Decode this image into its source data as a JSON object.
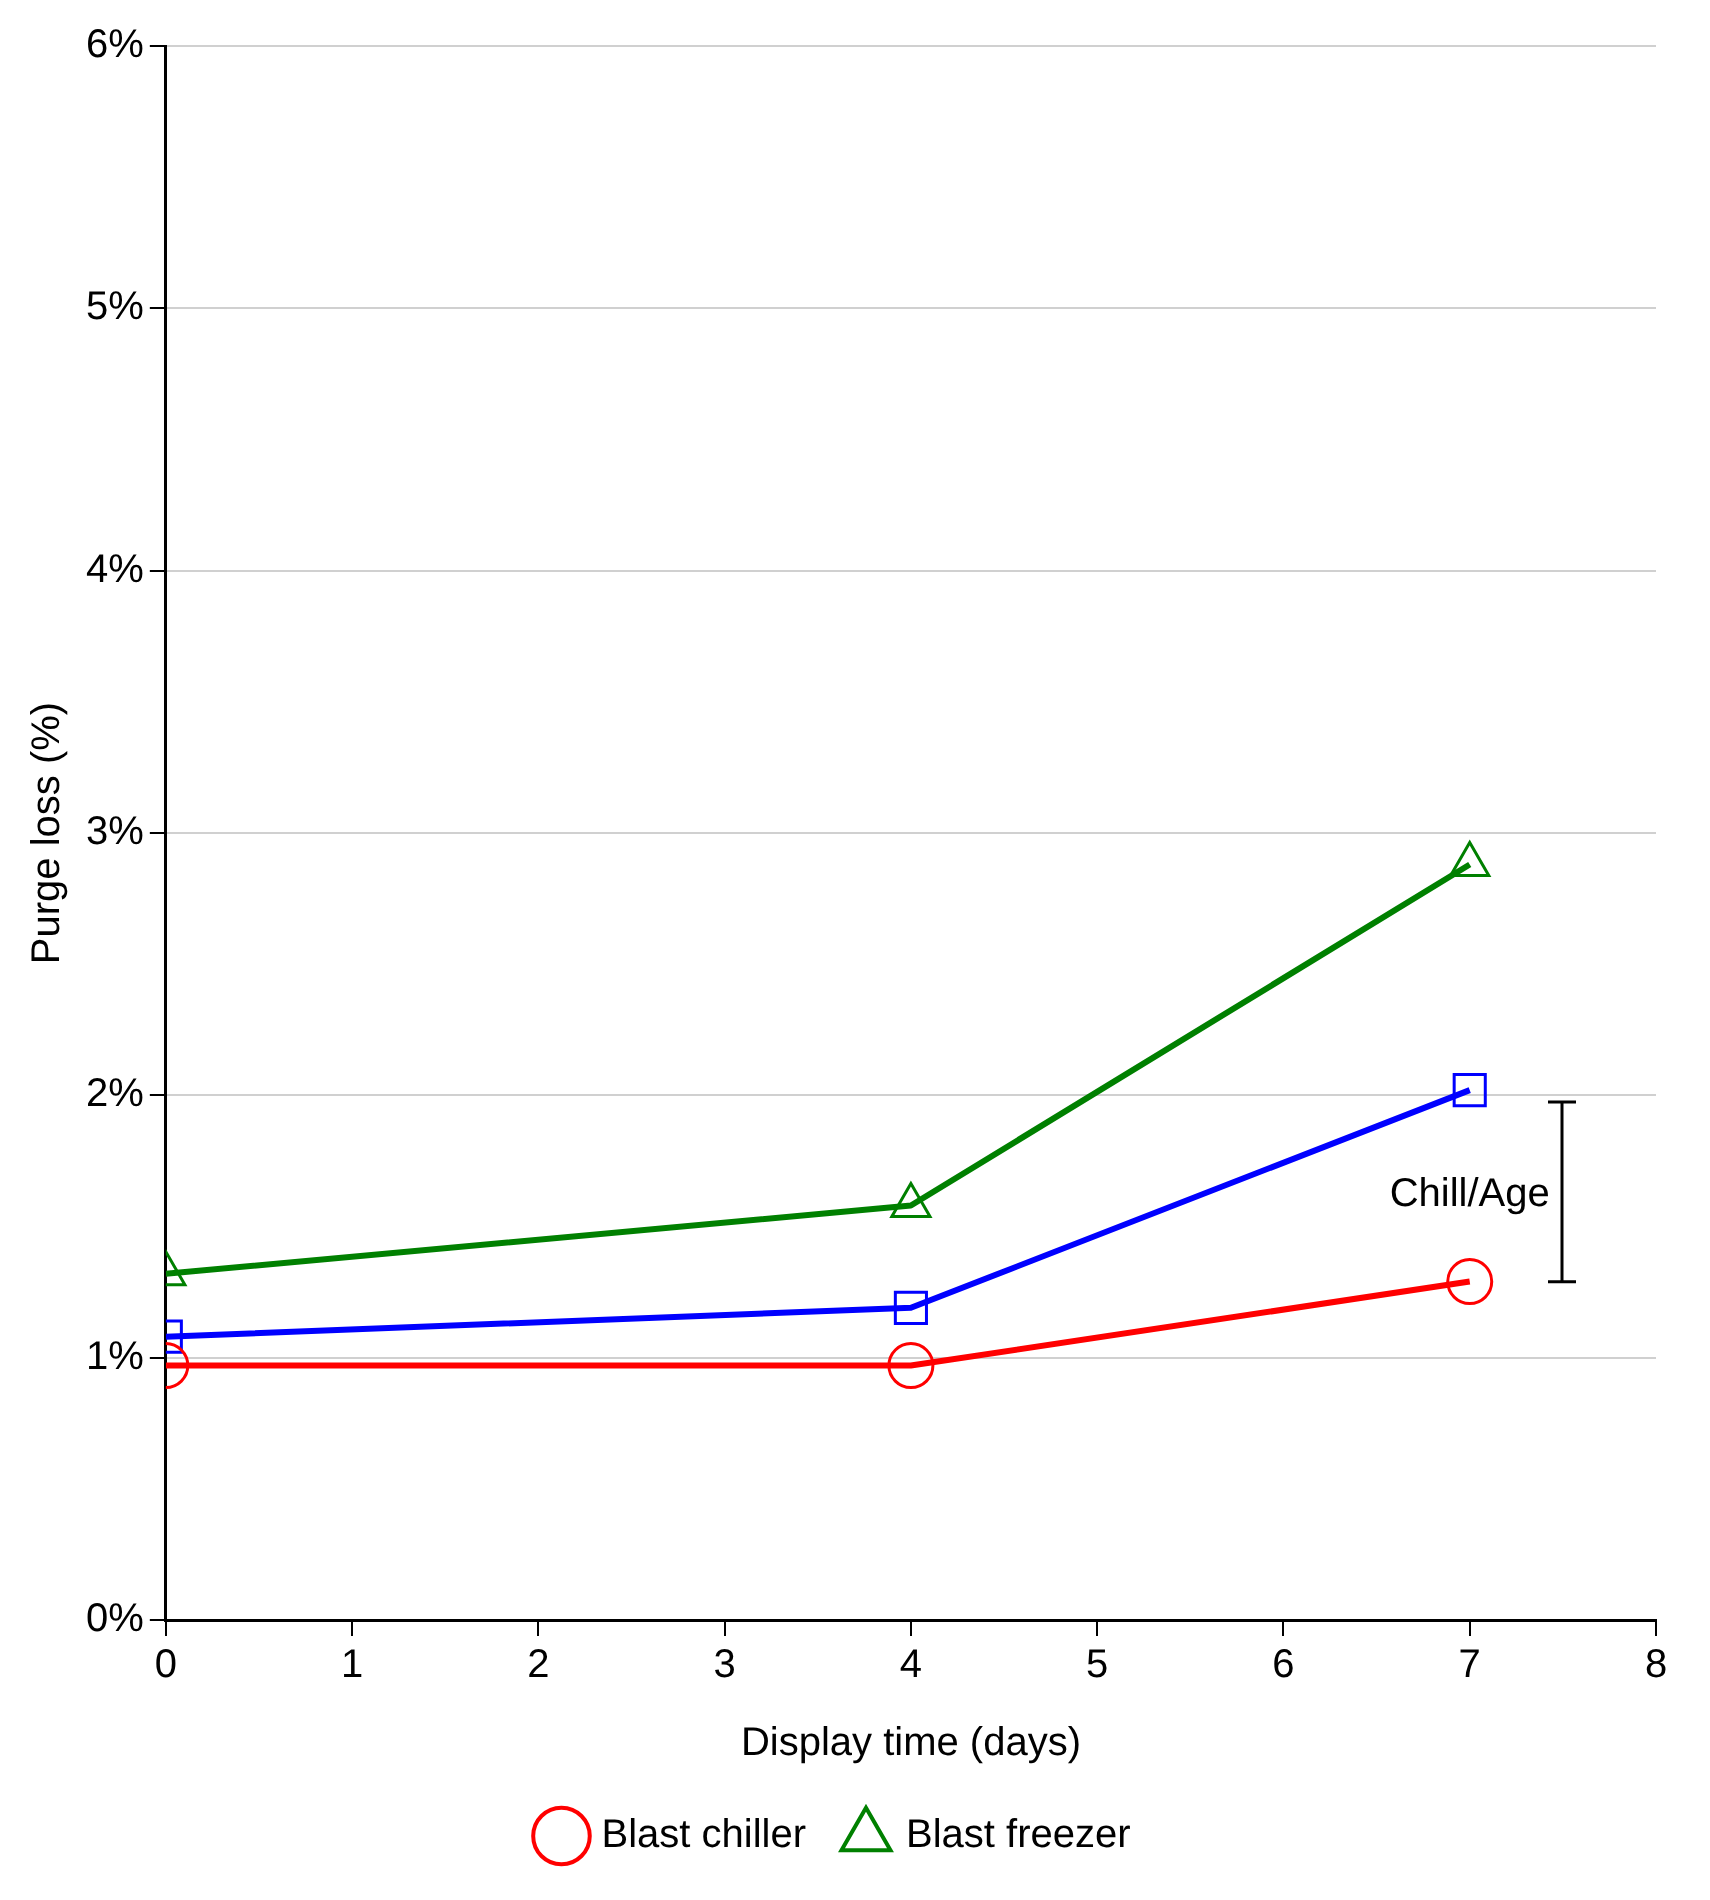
{
  "chart_data": {
    "type": "line",
    "xlabel": "Display time (days)",
    "ylabel": "Purge loss (%)",
    "xlim": [
      0,
      8
    ],
    "xticks": [
      0,
      1,
      2,
      3,
      4,
      5,
      6,
      7,
      8
    ],
    "ylim": [
      0,
      6
    ],
    "yticks": [
      {
        "value": 0,
        "label": "0%"
      },
      {
        "value": 1,
        "label": "1%"
      },
      {
        "value": 2,
        "label": "2%"
      },
      {
        "value": 3,
        "label": "3%"
      },
      {
        "value": 4,
        "label": "4%"
      },
      {
        "value": 5,
        "label": "5%"
      },
      {
        "value": 6,
        "label": "6%"
      }
    ],
    "grid": "y",
    "legend": "bottom",
    "line_style": "solid",
    "series": [
      {
        "name": "Blast chiller",
        "color": "#ff0000",
        "marker": "circle",
        "x": [
          0,
          4,
          7
        ],
        "values": [
          0.97,
          0.97,
          1.29
        ]
      },
      {
        "color": "#0000ff",
        "marker": "square",
        "x": [
          0,
          4,
          7
        ],
        "values": [
          1.08,
          1.19,
          2.02
        ]
      },
      {
        "name": "Blast freezer",
        "color": "#008000",
        "marker": "triangle",
        "x": [
          0,
          4,
          7
        ],
        "values": [
          1.32,
          1.58,
          2.88
        ]
      }
    ],
    "annotations": [
      "Chill/Age"
    ]
  }
}
